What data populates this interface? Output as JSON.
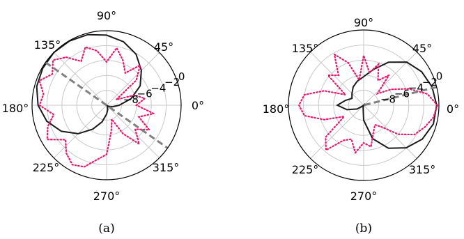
{
  "chart_data": [
    {
      "type": "line",
      "polar": true,
      "caption": "(a)",
      "theta_ticks": [
        "0°",
        "45°",
        "90°",
        "135°",
        "180°",
        "225°",
        "270°",
        "315°"
      ],
      "r_ticks": [
        "−8",
        "−6",
        "−4",
        "−2",
        "0"
      ],
      "rlim": [
        -10,
        0
      ],
      "grid": true,
      "colors": {
        "solid": "#1a1a1a",
        "dotted": "#e6196e",
        "dashed": "#808080"
      },
      "series": [
        {
          "style": "solid",
          "theta_deg": [
            0,
            15,
            30,
            45,
            60,
            75,
            90,
            105,
            120,
            135,
            150,
            165,
            180,
            195,
            210,
            225,
            240,
            255,
            270,
            285,
            300,
            315,
            330,
            345
          ],
          "r_db": [
            -8.3,
            -6.6,
            -4.8,
            -3.4,
            -2.1,
            -1.2,
            -0.6,
            -0.2,
            -0.05,
            0,
            -0.1,
            -0.3,
            -0.8,
            -1.7,
            -3.0,
            -4.6,
            -6.3,
            -7.7,
            -8.8,
            -9.4,
            -9.8,
            -9.9,
            -9.7,
            -9.2
          ]
        },
        {
          "style": "dotted",
          "theta_deg": [
            0,
            10,
            20,
            30,
            40,
            50,
            60,
            70,
            80,
            90,
            100,
            110,
            120,
            130,
            140,
            150,
            160,
            170,
            180,
            190,
            200,
            210,
            220,
            230,
            240,
            250,
            260,
            270,
            280,
            290,
            300,
            310,
            320,
            330,
            340,
            350
          ],
          "r_db": [
            -6.0,
            -4.8,
            -6.0,
            -8.5,
            -4.8,
            -3.0,
            -5.0,
            -3.6,
            -2.2,
            -4.2,
            -2.6,
            -1.7,
            -3.2,
            -1.6,
            -0.6,
            -1.6,
            -0.4,
            -1.4,
            -1.0,
            -2.8,
            -1.6,
            -0.8,
            -2.8,
            -1.6,
            -0.8,
            -1.2,
            -2.6,
            -3.4,
            -6.4,
            -8.0,
            -5.6,
            -3.2,
            -5.0,
            -3.4,
            -5.4,
            -3.6
          ]
        },
        {
          "style": "dashed",
          "theta_deg": [
            145,
            325
          ],
          "r_db": [
            0,
            0
          ]
        }
      ]
    },
    {
      "type": "line",
      "polar": true,
      "caption": "(b)",
      "theta_ticks": [
        "0°",
        "45°",
        "90°",
        "135°",
        "180°",
        "225°",
        "270°",
        "315°"
      ],
      "r_ticks": [
        "−8",
        "−6",
        "−4",
        "−2",
        "0"
      ],
      "rlim": [
        -10,
        0
      ],
      "grid": true,
      "colors": {
        "solid": "#1a1a1a",
        "dotted": "#e6196e",
        "dashed": "#808080"
      },
      "series": [
        {
          "style": "solid",
          "theta_deg": [
            0,
            15,
            30,
            45,
            60,
            75,
            90,
            105,
            120,
            135,
            150,
            165,
            180,
            195,
            210,
            225,
            240,
            255,
            270,
            285,
            300,
            315,
            330,
            345
          ],
          "r_db": [
            -0.3,
            -0.6,
            -1.1,
            -1.9,
            -3.4,
            -5.1,
            -6.2,
            -6.7,
            -7.2,
            -7.8,
            -8.2,
            -7.5,
            -6.5,
            -7.7,
            -9.0,
            -9.9,
            -9.99,
            -9.7,
            -8.0,
            -5.4,
            -3.4,
            -2.0,
            -1.0,
            -0.4
          ]
        },
        {
          "style": "dotted",
          "theta_deg": [
            0,
            10,
            20,
            30,
            40,
            50,
            60,
            70,
            80,
            90,
            100,
            110,
            120,
            130,
            140,
            150,
            160,
            170,
            180,
            190,
            200,
            210,
            220,
            230,
            240,
            250,
            260,
            270,
            280,
            290,
            300,
            310,
            320,
            330,
            340,
            350
          ],
          "r_db": [
            -0.2,
            -1.4,
            -3.6,
            -5.8,
            -7.6,
            -4.8,
            -6.2,
            -4.2,
            -5.6,
            -3.4,
            -6.6,
            -4.0,
            -2.2,
            -4.8,
            -3.8,
            -7.2,
            -4.4,
            -2.0,
            -1.4,
            -2.0,
            -4.4,
            -7.0,
            -3.4,
            -2.2,
            -4.6,
            -5.2,
            -3.6,
            -5.0,
            -4.4,
            -6.2,
            -7.0,
            -6.2,
            -4.0,
            -2.2,
            -1.4,
            -0.6
          ]
        },
        {
          "style": "dashed",
          "theta_deg": [
            14,
            194
          ],
          "r_db": [
            0,
            -10
          ]
        }
      ]
    }
  ]
}
